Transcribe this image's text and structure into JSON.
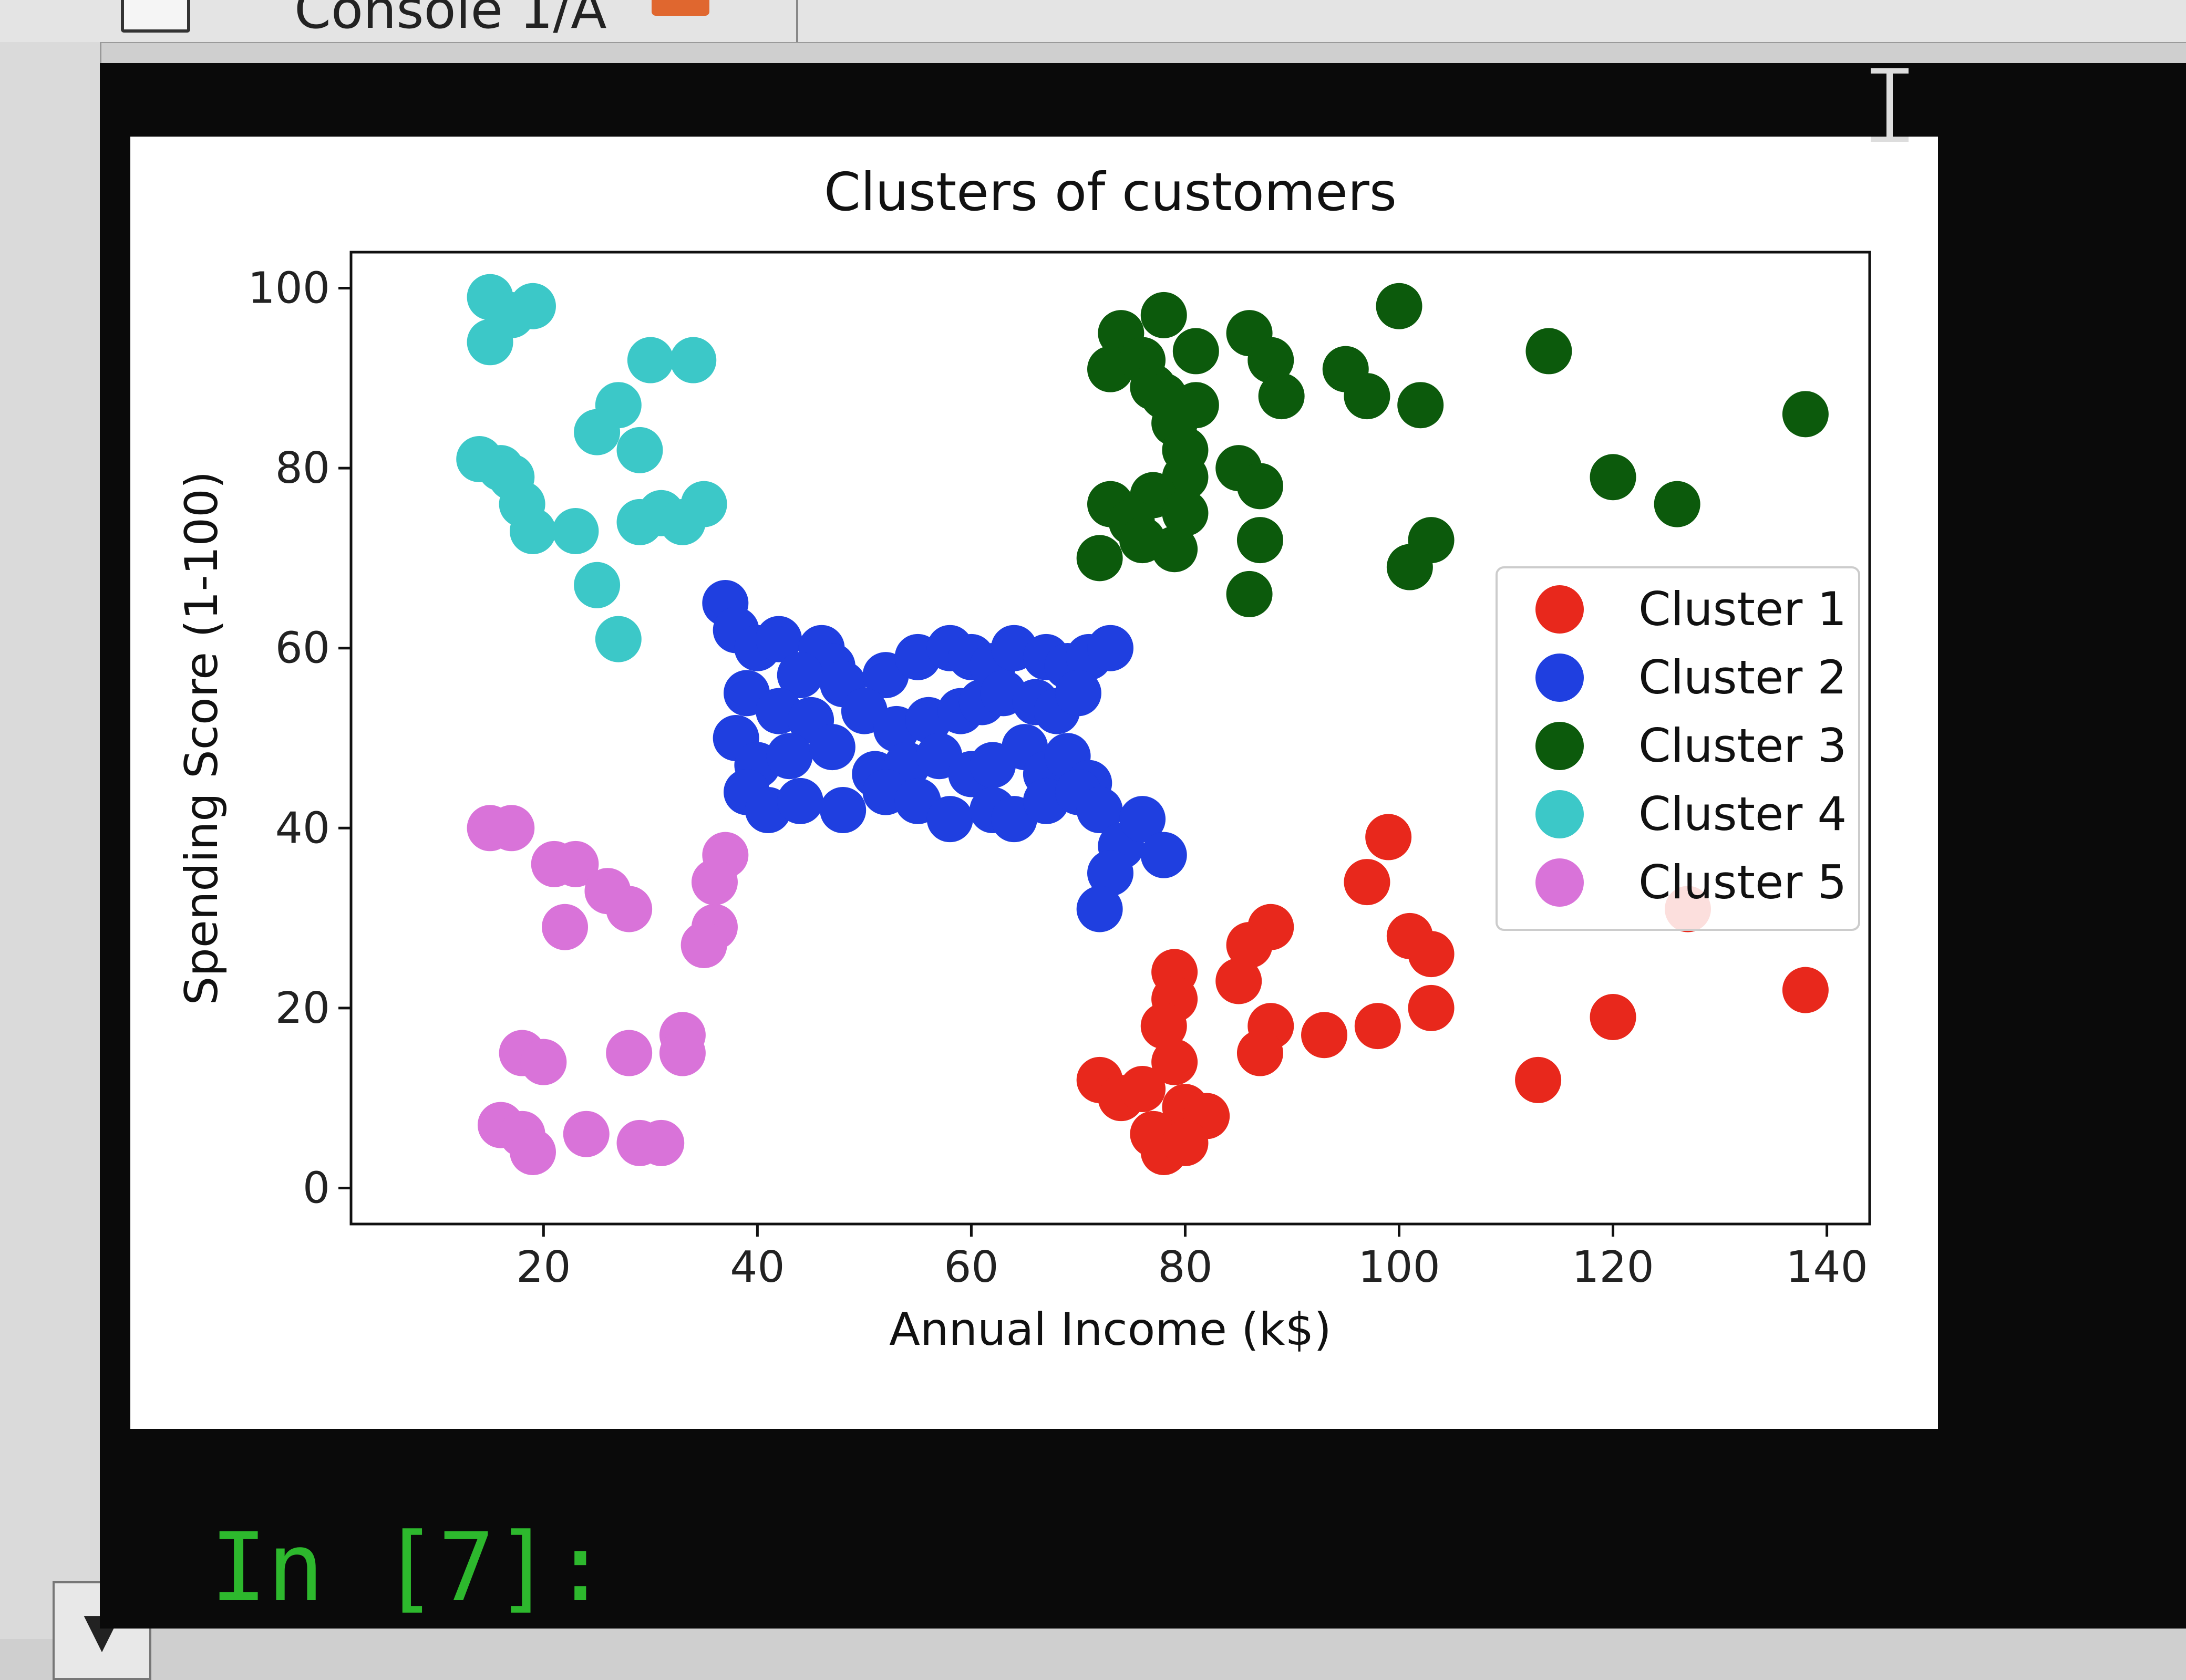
{
  "tab": {
    "label": "Console 1/A"
  },
  "prompt": {
    "text": "In [7]:"
  },
  "chart_data": {
    "type": "scatter",
    "title": "Clusters of customers",
    "xlabel": "Annual Income (k$)",
    "ylabel": "Spending Score (1-100)",
    "xlim": [
      2,
      144
    ],
    "ylim": [
      -4,
      104
    ],
    "xticks": [
      20,
      40,
      60,
      80,
      100,
      120,
      140
    ],
    "yticks": [
      0,
      20,
      40,
      60,
      80,
      100
    ],
    "grid": false,
    "legend_position": "center-right",
    "series": [
      {
        "name": "Cluster 1",
        "color": "#e8281c",
        "points": [
          [
            99,
            39
          ],
          [
            97,
            34
          ],
          [
            127,
            31
          ],
          [
            88,
            29
          ],
          [
            86,
            27
          ],
          [
            101,
            28
          ],
          [
            103,
            26
          ],
          [
            79,
            24
          ],
          [
            79,
            21
          ],
          [
            85,
            23
          ],
          [
            78,
            18
          ],
          [
            88,
            18
          ],
          [
            87,
            15
          ],
          [
            93,
            17
          ],
          [
            98,
            18
          ],
          [
            103,
            20
          ],
          [
            120,
            19
          ],
          [
            138,
            22
          ],
          [
            72,
            12
          ],
          [
            74,
            10
          ],
          [
            76,
            11
          ],
          [
            79,
            14
          ],
          [
            80,
            9
          ],
          [
            82,
            8
          ],
          [
            77,
            6
          ],
          [
            78,
            4
          ],
          [
            80,
            5
          ],
          [
            113,
            12
          ]
        ]
      },
      {
        "name": "Cluster 2",
        "color": "#1f3fe0",
        "points": [
          [
            37,
            65
          ],
          [
            38,
            62
          ],
          [
            40,
            60
          ],
          [
            42,
            61
          ],
          [
            46,
            60
          ],
          [
            47,
            58
          ],
          [
            44,
            57
          ],
          [
            48,
            56
          ],
          [
            52,
            57
          ],
          [
            55,
            59
          ],
          [
            58,
            60
          ],
          [
            60,
            59
          ],
          [
            62,
            58
          ],
          [
            64,
            60
          ],
          [
            67,
            59
          ],
          [
            69,
            58
          ],
          [
            71,
            59
          ],
          [
            73,
            60
          ],
          [
            39,
            55
          ],
          [
            42,
            53
          ],
          [
            45,
            52
          ],
          [
            50,
            53
          ],
          [
            53,
            51
          ],
          [
            56,
            52
          ],
          [
            59,
            53
          ],
          [
            61,
            54
          ],
          [
            63,
            55
          ],
          [
            66,
            54
          ],
          [
            68,
            53
          ],
          [
            70,
            55
          ],
          [
            38,
            50
          ],
          [
            40,
            47
          ],
          [
            43,
            48
          ],
          [
            47,
            49
          ],
          [
            51,
            46
          ],
          [
            54,
            47
          ],
          [
            57,
            48
          ],
          [
            60,
            46
          ],
          [
            62,
            47
          ],
          [
            65,
            49
          ],
          [
            67,
            46
          ],
          [
            69,
            48
          ],
          [
            71,
            45
          ],
          [
            39,
            44
          ],
          [
            41,
            42
          ],
          [
            44,
            43
          ],
          [
            48,
            42
          ],
          [
            52,
            44
          ],
          [
            55,
            43
          ],
          [
            58,
            41
          ],
          [
            62,
            42
          ],
          [
            64,
            41
          ],
          [
            67,
            43
          ],
          [
            70,
            44
          ],
          [
            72,
            42
          ],
          [
            74,
            38
          ],
          [
            76,
            41
          ],
          [
            78,
            37
          ],
          [
            73,
            35
          ],
          [
            72,
            31
          ]
        ]
      },
      {
        "name": "Cluster 3",
        "color": "#0c5a0c",
        "points": [
          [
            78,
            97
          ],
          [
            74,
            95
          ],
          [
            81,
            93
          ],
          [
            73,
            91
          ],
          [
            76,
            92
          ],
          [
            77,
            89
          ],
          [
            78,
            88
          ],
          [
            81,
            87
          ],
          [
            79,
            85
          ],
          [
            80,
            82
          ],
          [
            80,
            79
          ],
          [
            77,
            77
          ],
          [
            80,
            75
          ],
          [
            73,
            76
          ],
          [
            75,
            74
          ],
          [
            76,
            72
          ],
          [
            72,
            70
          ],
          [
            79,
            71
          ],
          [
            86,
            95
          ],
          [
            88,
            92
          ],
          [
            95,
            91
          ],
          [
            97,
            88
          ],
          [
            89,
            88
          ],
          [
            102,
            87
          ],
          [
            100,
            98
          ],
          [
            114,
            93
          ],
          [
            85,
            80
          ],
          [
            87,
            78
          ],
          [
            87,
            72
          ],
          [
            86,
            66
          ],
          [
            103,
            72
          ],
          [
            101,
            69
          ],
          [
            120,
            79
          ],
          [
            126,
            76
          ],
          [
            138,
            86
          ]
        ]
      },
      {
        "name": "Cluster 4",
        "color": "#3cc8c8",
        "points": [
          [
            15,
            99
          ],
          [
            17,
            97
          ],
          [
            19,
            98
          ],
          [
            15,
            94
          ],
          [
            30,
            92
          ],
          [
            34,
            92
          ],
          [
            27,
            87
          ],
          [
            25,
            84
          ],
          [
            29,
            82
          ],
          [
            14,
            81
          ],
          [
            16,
            80
          ],
          [
            17,
            79
          ],
          [
            18,
            76
          ],
          [
            19,
            73
          ],
          [
            23,
            73
          ],
          [
            29,
            74
          ],
          [
            31,
            75
          ],
          [
            33,
            74
          ],
          [
            35,
            76
          ],
          [
            25,
            67
          ],
          [
            27,
            61
          ]
        ]
      },
      {
        "name": "Cluster 5",
        "color": "#d973d9",
        "points": [
          [
            15,
            40
          ],
          [
            17,
            40
          ],
          [
            21,
            36
          ],
          [
            23,
            36
          ],
          [
            26,
            33
          ],
          [
            28,
            31
          ],
          [
            22,
            29
          ],
          [
            37,
            37
          ],
          [
            36,
            34
          ],
          [
            36,
            29
          ],
          [
            35,
            27
          ],
          [
            18,
            15
          ],
          [
            20,
            14
          ],
          [
            28,
            15
          ],
          [
            33,
            17
          ],
          [
            33,
            15
          ],
          [
            16,
            7
          ],
          [
            18,
            6
          ],
          [
            24,
            6
          ],
          [
            29,
            5
          ],
          [
            31,
            5
          ],
          [
            19,
            4
          ]
        ]
      }
    ]
  }
}
